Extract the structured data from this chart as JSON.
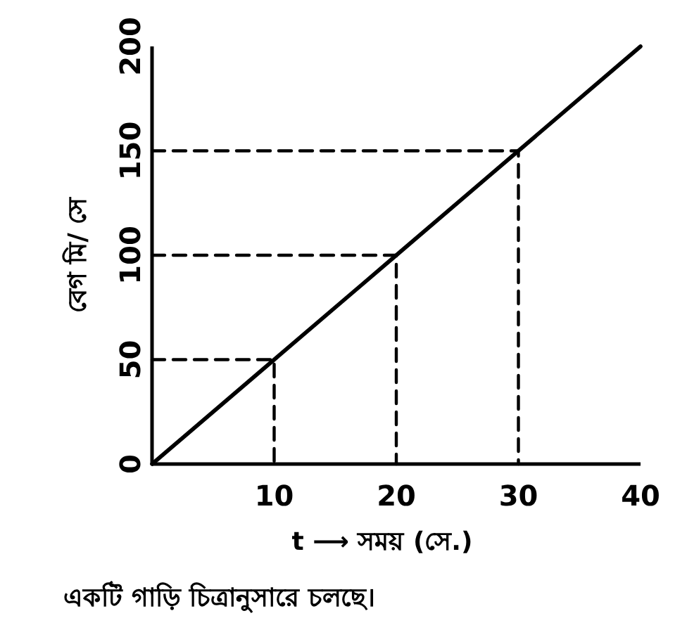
{
  "chart_data": {
    "type": "line",
    "ylabel": "বেগ মি/ সে",
    "xlabel": "t ⟶ সময় (সে.)",
    "annotations": [
      "একটি গাড়ি চিত্রানুসারে চলছে।"
    ],
    "xlim": [
      0,
      40
    ],
    "ylim": [
      0,
      200
    ],
    "xticks": [
      10,
      20,
      30,
      40
    ],
    "yticks": [
      0,
      50,
      100,
      150,
      200
    ],
    "grid": false,
    "series": [
      {
        "color": "#000000",
        "x": [
          0,
          10,
          20,
          30,
          40
        ],
        "values": [
          0,
          50,
          100,
          150,
          200
        ],
        "line_style": "solid"
      },
      {
        "color": "#000000",
        "x": [
          0,
          10,
          10
        ],
        "values": [
          50,
          50,
          0
        ],
        "line_style": "dashed"
      },
      {
        "color": "#000000",
        "x": [
          0,
          20,
          20
        ],
        "values": [
          100,
          100,
          0
        ],
        "line_style": "dashed"
      },
      {
        "color": "#000000",
        "x": [
          0,
          30,
          30
        ],
        "values": [
          150,
          150,
          0
        ],
        "line_style": "dashed"
      }
    ]
  }
}
